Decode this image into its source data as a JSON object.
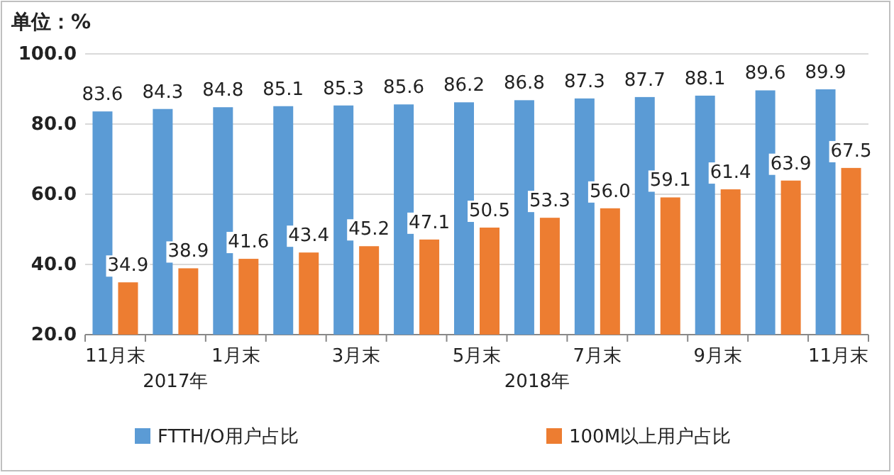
{
  "chart_data": {
    "type": "bar",
    "ylabel": "单位：%",
    "categories": [
      "11月末",
      "2017年",
      "1月末",
      null,
      "3月末",
      null,
      "5月末",
      "2018年",
      "7月末",
      null,
      "9月末",
      null,
      "11月末"
    ],
    "series": [
      {
        "name": "FTTH/O用户占比",
        "color": "#5b9bd5",
        "values": [
          83.6,
          84.3,
          84.8,
          85.1,
          85.3,
          85.6,
          86.2,
          86.8,
          87.3,
          87.7,
          88.1,
          89.6,
          89.9
        ],
        "value_labels": [
          "83.6",
          "84.3",
          "84.8",
          "85.1",
          "85.3",
          "85.6",
          "86.2",
          "86.8",
          "87.3",
          "87.7",
          "88.1",
          "89.6",
          "89.9"
        ]
      },
      {
        "name": "100M以上用户占比",
        "color": "#ed7d31",
        "values": [
          34.9,
          38.9,
          41.6,
          43.4,
          45.2,
          47.1,
          50.5,
          53.3,
          56.0,
          59.1,
          61.4,
          63.9,
          67.5
        ],
        "value_labels": [
          "34.9",
          "38.9",
          "41.6",
          "43.4",
          "45.2",
          "47.1",
          "50.5",
          "53.3",
          "56.0",
          "59.1",
          "61.4",
          "63.9",
          "67.5"
        ]
      }
    ],
    "ylim": [
      20,
      100
    ],
    "yticks": [
      {
        "value": 20,
        "label": "20.0"
      },
      {
        "value": 40,
        "label": "40.0"
      },
      {
        "value": 60,
        "label": "60.0"
      },
      {
        "value": 80,
        "label": "80.0"
      },
      {
        "value": 100,
        "label": "100.0"
      }
    ],
    "grid": "y",
    "legend": "bottom"
  }
}
